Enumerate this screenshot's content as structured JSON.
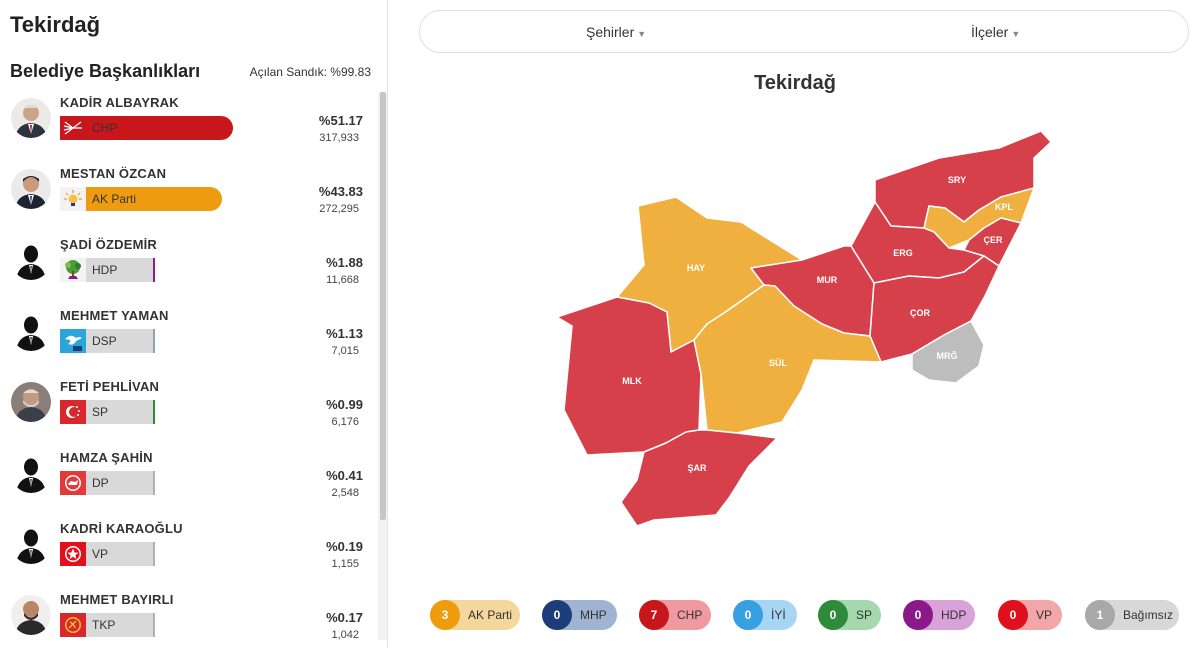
{
  "left_title": "Tekirdağ",
  "section_title": "Belediye Başkanlıkları",
  "ballot_opened": "Açılan Sandık: %99.83",
  "candidates": [
    {
      "name": "KADİR ALBAYRAK",
      "party": "CHP",
      "pct": "%51.17",
      "votes": "317,933",
      "share": 51.17,
      "color": "#c8161d"
    },
    {
      "name": "MESTAN ÖZCAN",
      "party": "AK Parti",
      "pct": "%43.83",
      "votes": "272,295",
      "share": 43.83,
      "color": "#ef9b0f"
    },
    {
      "name": "ŞADİ ÖZDEMİR",
      "party": "HDP",
      "pct": "%1.88",
      "votes": "11,668",
      "share": 1.88,
      "color": "#8a1a8a"
    },
    {
      "name": "MEHMET YAMAN",
      "party": "DSP",
      "pct": "%1.13",
      "votes": "7,015",
      "share": 1.13,
      "color": "#8fa3b0"
    },
    {
      "name": "FETİ PEHLİVAN",
      "party": "SP",
      "pct": "%0.99",
      "votes": "6,176",
      "share": 0.99,
      "color": "#2e8b3a"
    },
    {
      "name": "HAMZA ŞAHİN",
      "party": "DP",
      "pct": "%0.41",
      "votes": "2,548",
      "share": 0.41,
      "color": "#b0b0b0"
    },
    {
      "name": "KADRİ KARAOĞLU",
      "party": "VP",
      "pct": "%0.19",
      "votes": "1,155",
      "share": 0.19,
      "color": "#b0b0b0"
    },
    {
      "name": "MEHMET BAYIRLI",
      "party": "TKP",
      "pct": "%0.17",
      "votes": "1,042",
      "share": 0.17,
      "color": "#b0b0b0"
    }
  ],
  "selector": {
    "cities": "Şehirler",
    "districts": "İlçeler"
  },
  "map_title": "Tekirdağ",
  "districts": [
    {
      "code": "SRY",
      "party": "CHP"
    },
    {
      "code": "KPL",
      "party": "AK Parti"
    },
    {
      "code": "ÇER",
      "party": "CHP"
    },
    {
      "code": "ERG",
      "party": "CHP"
    },
    {
      "code": "HAY",
      "party": "AK Parti"
    },
    {
      "code": "MUR",
      "party": "CHP"
    },
    {
      "code": "ÇOR",
      "party": "CHP"
    },
    {
      "code": "MRĞ",
      "party": "Bağımsız"
    },
    {
      "code": "MLK",
      "party": "CHP"
    },
    {
      "code": "SÜL",
      "party": "AK Parti"
    },
    {
      "code": "ŞAR",
      "party": "CHP"
    }
  ],
  "legend": [
    {
      "count": "3",
      "label": "AK Parti",
      "circle": "#ef9b0f",
      "bg": "#f5d79c"
    },
    {
      "count": "0",
      "label": "MHP",
      "circle": "#1c3c7a",
      "bg": "#9fb3d3"
    },
    {
      "count": "7",
      "label": "CHP",
      "circle": "#c8161d",
      "bg": "#ef9aa0"
    },
    {
      "count": "0",
      "label": "İYİ",
      "circle": "#36a0e0",
      "bg": "#a7d6f5"
    },
    {
      "count": "0",
      "label": "SP",
      "circle": "#2e8b3a",
      "bg": "#a6d8ae"
    },
    {
      "count": "0",
      "label": "HDP",
      "circle": "#8a1a8a",
      "bg": "#d8a3d8"
    },
    {
      "count": "0",
      "label": "VP",
      "circle": "#e0101c",
      "bg": "#f2a6aa"
    },
    {
      "count": "1",
      "label": "Bağımsız",
      "circle": "#a8a8a8",
      "bg": "#d8d8d8"
    }
  ],
  "colors": {
    "chp_map": "#d5404a",
    "ak_map": "#efb03f",
    "ind_map": "#bdbdbd"
  }
}
